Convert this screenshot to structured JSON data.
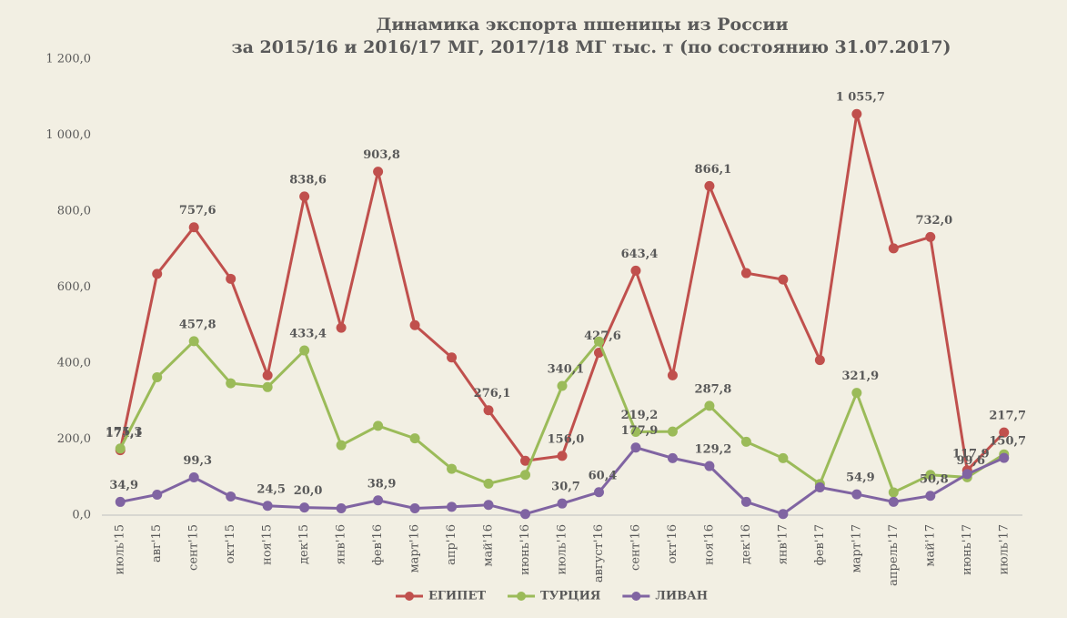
{
  "chart_data": {
    "type": "line",
    "title": "Динамика экспорта пшеницы из России",
    "subtitle": "за  2015/16 и 2016/17 МГ,  2017/18 МГ тыс. т (по состоянию 31.07.2017)",
    "categories": [
      "июль'15",
      "авг'15",
      "сент'15",
      "окт'15",
      "ноя'15",
      "дек'15",
      "янв'16",
      "фев'16",
      "март'16",
      "апр'16",
      "май'16",
      "июнь'16",
      "июль'16",
      "август'16",
      "сент'16",
      "окт'16",
      "ноя'16",
      "дек'16",
      "янв'17",
      "фев'17",
      "март'17",
      "апрель'17",
      "май'17",
      "июнь'17",
      "июль'17"
    ],
    "series": [
      {
        "name": "ЕГИПЕТ",
        "color": "#c0504d",
        "label_color": "#943634",
        "values": [
          171.1,
          635,
          757.6,
          622,
          368,
          838.6,
          493,
          903.8,
          500,
          415,
          276.1,
          143,
          156.0,
          427.6,
          643.4,
          368,
          866.1,
          637,
          620,
          408,
          1055.7,
          702,
          732.0,
          117.9,
          217.7
        ],
        "value_labels": [
          "171,1",
          null,
          "757,6",
          null,
          null,
          "838,6",
          null,
          "903,8",
          null,
          null,
          "276,1",
          null,
          "156,0",
          "427,6",
          "643,4",
          null,
          "866,1",
          null,
          null,
          null,
          "1 055,7",
          null,
          "732,0",
          "117,9",
          "217,7"
        ]
      },
      {
        "name": "ТУРЦИЯ",
        "color": "#9bbb59",
        "label_color": "#76923c",
        "values": [
          175.3,
          363,
          457.8,
          347,
          337,
          433.4,
          184,
          235,
          202,
          122,
          83,
          106,
          340.1,
          457,
          219.2,
          220,
          287.8,
          193,
          150,
          82,
          321.9,
          60,
          106,
          99.6,
          160
        ],
        "value_labels": [
          "175,3",
          null,
          "457,8",
          null,
          null,
          "433,4",
          null,
          null,
          null,
          null,
          null,
          null,
          "340,1",
          null,
          "219,2",
          null,
          "287,8",
          null,
          null,
          null,
          "321,9",
          null,
          null,
          "99,6",
          null
        ]
      },
      {
        "name": "ЛИВАН",
        "color": "#8064a2",
        "label_color": "#5f497a",
        "values": [
          34.9,
          54,
          99.3,
          49,
          24.5,
          20.0,
          18,
          38.9,
          18,
          22,
          27,
          3,
          30.7,
          60.4,
          177.9,
          150,
          129.2,
          35,
          3,
          73,
          54.9,
          35,
          50.8,
          108,
          150.7
        ],
        "value_labels": [
          "34,9",
          null,
          "99,3",
          null,
          "24,5",
          "20,0",
          null,
          "38,9",
          null,
          null,
          null,
          null,
          "30,7",
          "60,4",
          "177,9",
          null,
          "129,2",
          null,
          null,
          null,
          "54,9",
          null,
          "50,8",
          null,
          "150,7"
        ]
      }
    ],
    "ylim": [
      0,
      1200
    ],
    "yticks": [
      {
        "value": 0,
        "label": "0,0"
      },
      {
        "value": 200,
        "label": "200,0"
      },
      {
        "value": 400,
        "label": "400,0"
      },
      {
        "value": 600,
        "label": "600,0"
      },
      {
        "value": 800,
        "label": "800,0"
      },
      {
        "value": 1000,
        "label": "1 000,0"
      },
      {
        "value": 1200,
        "label": "1 200,0"
      }
    ],
    "grid": false,
    "legend": "bottom"
  }
}
